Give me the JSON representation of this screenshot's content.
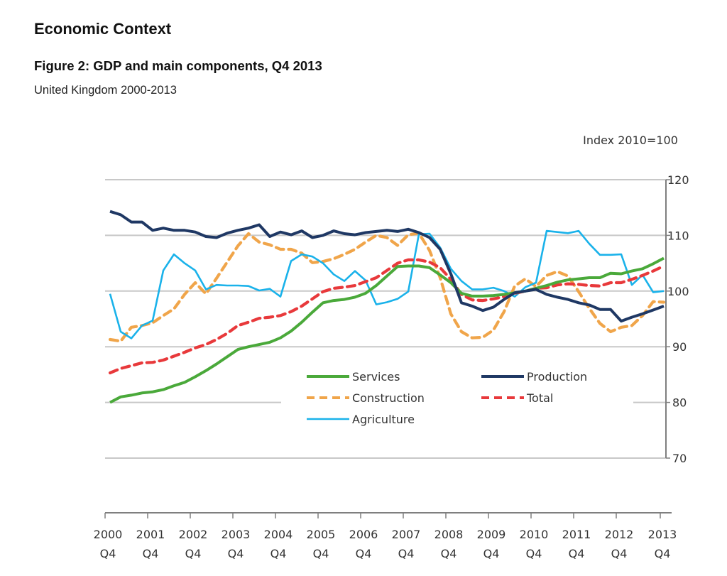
{
  "header": {
    "section_title": "Economic Context",
    "figure_title": "Figure 2: GDP and main components, Q4 2013",
    "figure_subtitle": "United Kingdom 2000-2013"
  },
  "chart_data": {
    "type": "line",
    "title": "Figure 2: GDP and main components, Q4 2013",
    "subtitle": "United Kingdom 2000-2013",
    "ylabel": "Index 2010=100",
    "xlabel": "",
    "ylim": [
      70,
      120
    ],
    "yticks": [
      70,
      80,
      90,
      100,
      110,
      120
    ],
    "y_axis_side": "right",
    "grid": true,
    "legend_position": "center-bottom-inside",
    "x_tick_labels": [
      [
        "2000",
        "Q4"
      ],
      [
        "2001",
        "Q4"
      ],
      [
        "2002",
        "Q4"
      ],
      [
        "2003",
        "Q4"
      ],
      [
        "2004",
        "Q4"
      ],
      [
        "2005",
        "Q4"
      ],
      [
        "2006",
        "Q4"
      ],
      [
        "2007",
        "Q4"
      ],
      [
        "2008",
        "Q4"
      ],
      [
        "2009",
        "Q4"
      ],
      [
        "2010",
        "Q4"
      ],
      [
        "2011",
        "Q4"
      ],
      [
        "2012",
        "Q4"
      ],
      [
        "2013",
        "Q4"
      ]
    ],
    "x_start": "2000 Q4",
    "x_end": "2013 Q4",
    "frequency": "quarterly",
    "series": [
      {
        "name": "Services",
        "color": "#4aa93a",
        "style": "solid",
        "values": [
          80.0,
          81.0,
          81.3,
          81.7,
          81.9,
          82.3,
          83.0,
          83.6,
          84.6,
          85.7,
          86.9,
          88.2,
          89.5,
          90.0,
          90.4,
          90.8,
          91.6,
          92.8,
          94.4,
          96.2,
          97.9,
          98.3,
          98.5,
          98.9,
          99.6,
          101.0,
          102.7,
          104.4,
          104.5,
          104.5,
          104.2,
          102.9,
          101.5,
          99.6,
          99.1,
          99.1,
          99.2,
          99.4,
          99.7,
          100.0,
          100.5,
          101.0,
          101.6,
          102.0,
          102.2,
          102.4,
          102.4,
          103.2,
          103.1,
          103.6,
          104.0,
          104.9,
          105.9
        ]
      },
      {
        "name": "Production",
        "color": "#1f3864",
        "style": "solid",
        "values": [
          114.3,
          113.7,
          112.4,
          112.4,
          110.9,
          111.3,
          110.9,
          110.9,
          110.6,
          109.8,
          109.6,
          110.4,
          110.9,
          111.3,
          111.9,
          109.8,
          110.6,
          110.1,
          110.8,
          109.6,
          110.0,
          110.8,
          110.3,
          110.1,
          110.5,
          110.7,
          110.9,
          110.7,
          111.1,
          110.5,
          109.6,
          107.5,
          103.1,
          97.9,
          97.3,
          96.5,
          97.1,
          98.5,
          99.7,
          100.0,
          100.3,
          99.4,
          98.9,
          98.5,
          97.9,
          97.5,
          96.7,
          96.7,
          94.6,
          95.3,
          95.9,
          96.6,
          97.3
        ]
      },
      {
        "name": "Construction",
        "color": "#f0a54a",
        "style": "dashed",
        "values": [
          91.3,
          91.0,
          93.5,
          93.8,
          94.3,
          95.6,
          96.8,
          99.4,
          101.5,
          99.5,
          102.3,
          105.2,
          108.1,
          110.3,
          108.8,
          108.3,
          107.5,
          107.5,
          106.8,
          105.1,
          105.3,
          105.8,
          106.6,
          107.5,
          108.8,
          110.0,
          109.6,
          108.2,
          110.1,
          110.4,
          107.3,
          102.4,
          95.9,
          92.7,
          91.6,
          91.7,
          93.0,
          96.3,
          100.9,
          102.2,
          100.8,
          102.8,
          103.5,
          102.7,
          99.9,
          96.9,
          94.2,
          92.7,
          93.5,
          93.8,
          95.6,
          98.1,
          98.0
        ]
      },
      {
        "name": "Total",
        "color": "#e8393b",
        "style": "dashed",
        "values": [
          85.3,
          86.1,
          86.6,
          87.1,
          87.2,
          87.6,
          88.3,
          89.0,
          89.8,
          90.4,
          91.3,
          92.4,
          93.8,
          94.4,
          95.1,
          95.3,
          95.6,
          96.3,
          97.3,
          98.6,
          99.9,
          100.5,
          100.7,
          101.0,
          101.7,
          102.4,
          103.7,
          105.0,
          105.6,
          105.6,
          105.2,
          104.2,
          102.1,
          99.4,
          98.4,
          98.3,
          98.6,
          99.0,
          99.6,
          100.0,
          100.5,
          100.6,
          101.1,
          101.3,
          101.2,
          101.0,
          100.9,
          101.5,
          101.5,
          102.1,
          102.8,
          103.6,
          104.5
        ]
      },
      {
        "name": "Agriculture",
        "color": "#1ab2ea",
        "style": "solid",
        "values": [
          99.5,
          92.7,
          91.5,
          93.8,
          94.7,
          103.7,
          106.6,
          105.0,
          103.7,
          100.3,
          101.1,
          101.0,
          101.0,
          100.9,
          100.1,
          100.4,
          99.0,
          105.4,
          106.6,
          106.2,
          105.0,
          103.0,
          101.8,
          103.6,
          101.9,
          97.6,
          98.0,
          98.6,
          99.9,
          110.2,
          110.3,
          107.8,
          104.0,
          101.8,
          100.3,
          100.3,
          100.6,
          100.0,
          99.0,
          100.7,
          101.5,
          110.8,
          110.6,
          110.4,
          110.8,
          108.5,
          106.5,
          106.5,
          106.6,
          101.1,
          102.9,
          99.8,
          100.0
        ]
      }
    ]
  }
}
